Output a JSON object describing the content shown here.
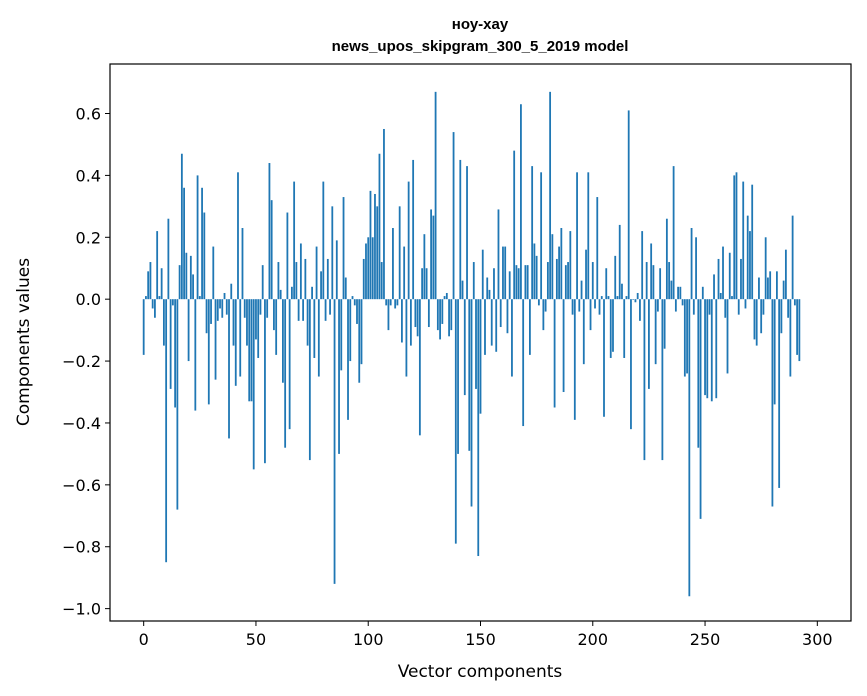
{
  "chart_data": {
    "type": "bar",
    "title": "ноу-хау",
    "subtitle": "news_upos_skipgram_300_5_2019 model",
    "xlabel": "Vector components",
    "ylabel": "Components values",
    "xlim": [
      -15,
      315
    ],
    "ylim": [
      -1.04,
      0.76
    ],
    "xticks": [
      0,
      50,
      100,
      150,
      200,
      250,
      300
    ],
    "xtick_labels": [
      "0",
      "50",
      "100",
      "150",
      "200",
      "250",
      "300"
    ],
    "yticks": [
      0.6,
      0.4,
      0.2,
      0.0,
      -0.2,
      -0.4,
      -0.6,
      -0.8,
      -1.0
    ],
    "ytick_labels": [
      "0.6",
      "0.4",
      "0.2",
      "0.0",
      "−0.2",
      "−0.4",
      "−0.6",
      "−0.8",
      "−1.0"
    ],
    "bar_color": "#1f77b4",
    "grid": false,
    "values": [
      -0.18,
      0.01,
      0.09,
      0.12,
      -0.03,
      -0.06,
      0.22,
      0.01,
      0.1,
      -0.15,
      -0.85,
      0.26,
      -0.29,
      -0.02,
      -0.35,
      -0.68,
      0.11,
      0.47,
      0.36,
      0.15,
      -0.2,
      0.14,
      0.08,
      -0.36,
      0.4,
      0.01,
      0.36,
      0.28,
      -0.11,
      -0.34,
      -0.08,
      0.17,
      -0.26,
      -0.07,
      -0.03,
      -0.06,
      0.02,
      -0.05,
      -0.45,
      0.05,
      -0.15,
      -0.28,
      0.41,
      -0.25,
      0.23,
      -0.06,
      -0.15,
      -0.33,
      -0.33,
      -0.55,
      -0.13,
      -0.19,
      -0.05,
      0.11,
      -0.53,
      -0.06,
      0.44,
      0.32,
      -0.1,
      -0.18,
      0.12,
      0.03,
      -0.27,
      -0.48,
      0.28,
      -0.42,
      0.04,
      0.38,
      0.12,
      -0.07,
      0.18,
      -0.07,
      0.13,
      -0.15,
      -0.52,
      0.04,
      -0.19,
      0.17,
      -0.25,
      0.09,
      0.38,
      -0.07,
      0.13,
      -0.05,
      0.3,
      -0.92,
      0.19,
      -0.5,
      -0.23,
      0.33,
      0.07,
      -0.39,
      -0.2,
      0.01,
      -0.02,
      -0.08,
      -0.27,
      -0.21,
      0.13,
      0.18,
      0.2,
      0.35,
      0.2,
      0.34,
      0.3,
      0.47,
      0.12,
      0.55,
      -0.02,
      -0.1,
      -0.02,
      0.23,
      -0.03,
      -0.02,
      0.3,
      -0.14,
      0.17,
      -0.25,
      0.38,
      -0.15,
      0.45,
      -0.09,
      -0.12,
      -0.44,
      0.1,
      0.21,
      0.1,
      -0.09,
      0.29,
      0.27,
      0.67,
      -0.1,
      -0.13,
      -0.08,
      0.01,
      0.02,
      -0.12,
      -0.1,
      0.54,
      -0.79,
      -0.5,
      0.45,
      0.06,
      -0.31,
      0.43,
      -0.49,
      -0.67,
      0.12,
      -0.29,
      -0.83,
      -0.37,
      0.16,
      -0.18,
      0.07,
      0.03,
      -0.15,
      0.1,
      -0.17,
      0.29,
      -0.09,
      0.17,
      0.17,
      -0.11,
      0.09,
      -0.25,
      0.48,
      0.11,
      0.1,
      0.63,
      -0.41,
      0.11,
      0.11,
      -0.18,
      0.43,
      0.18,
      0.14,
      -0.02,
      0.41,
      -0.1,
      -0.04,
      0.12,
      0.67,
      0.21,
      -0.35,
      0.13,
      0.17,
      0.23,
      -0.3,
      0.11,
      0.12,
      0.22,
      -0.05,
      -0.39,
      0.41,
      -0.04,
      0.06,
      -0.21,
      0.16,
      0.41,
      -0.1,
      0.12,
      -0.03,
      0.33,
      -0.05,
      0.01,
      -0.38,
      0.1,
      0.01,
      -0.19,
      -0.17,
      0.14,
      0.01,
      0.24,
      0.05,
      -0.19,
      0.01,
      0.61,
      -0.42,
      0.0,
      -0.01,
      0.02,
      -0.07,
      0.22,
      -0.52,
      0.12,
      -0.29,
      0.18,
      0.11,
      -0.21,
      -0.04,
      0.1,
      -0.52,
      -0.16,
      0.26,
      0.12,
      0.06,
      0.43,
      -0.04,
      0.04,
      0.04,
      -0.02,
      -0.25,
      -0.24,
      -0.96,
      0.23,
      -0.05,
      0.2,
      -0.48,
      -0.71,
      0.04,
      -0.31,
      -0.32,
      -0.05,
      -0.33,
      0.08,
      -0.32,
      0.13,
      0.02,
      0.17,
      -0.06,
      -0.24,
      0.15,
      0.01,
      0.4,
      0.41,
      -0.05,
      0.13,
      0.38,
      -0.03,
      0.27,
      0.22,
      0.37,
      -0.13,
      -0.15,
      0.07,
      -0.11,
      -0.05,
      0.2,
      0.07,
      0.09,
      -0.67,
      -0.34,
      0.09,
      -0.61,
      -0.11,
      0.06,
      0.16,
      -0.06,
      -0.25,
      0.27,
      -0.02,
      -0.18,
      -0.2
    ]
  }
}
